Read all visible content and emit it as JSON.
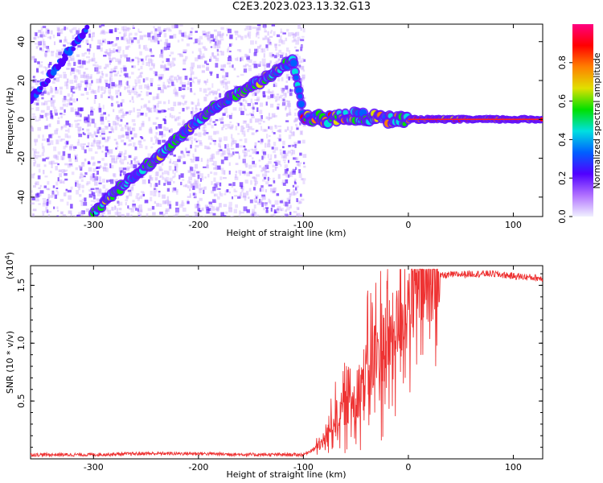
{
  "figure": {
    "title": "C2E3.2023.023.13.32.G13"
  },
  "chart_data": [
    {
      "type": "heatmap",
      "xlabel": "Height of straight line (km)",
      "ylabel": "Frequency (Hz)",
      "xlim": [
        -360,
        128
      ],
      "ylim": [
        -50,
        49
      ],
      "xticks": [
        -300,
        -200,
        -100,
        0,
        100
      ],
      "yticks": [
        -40,
        -20,
        0,
        20,
        40
      ],
      "colorbar": {
        "label": "Normalized spectral amplitude",
        "range": [
          0,
          1
        ],
        "ticks": [
          0.0,
          0.2,
          0.4,
          0.6,
          0.8
        ],
        "colormap": [
          "#f0f0ff",
          "#b070ff",
          "#5000ff",
          "#0060ff",
          "#00e0e0",
          "#00e000",
          "#e0e000",
          "#ff8000",
          "#ff0000",
          "#ff0080"
        ]
      },
      "trace": {
        "x": [
          -310,
          -300,
          -280,
          -260,
          -240,
          -220,
          -200,
          -180,
          -160,
          -140,
          -120,
          -110,
          -100,
          -80,
          -60,
          -40,
          -20,
          -10,
          0,
          20,
          60,
          100,
          128
        ],
        "y": [
          47,
          -48,
          -38,
          -28,
          -20,
          -10,
          0,
          8,
          14,
          20,
          27,
          30,
          2,
          0,
          2,
          1,
          0,
          0,
          0,
          0,
          0,
          0,
          0
        ]
      }
    },
    {
      "type": "line",
      "xlabel": "Height of straight line (km)",
      "ylabel": "SNR (10 * v/v)",
      "multiplier_base": "(x10",
      "multiplier_exp": "4",
      "multiplier_close": ")",
      "xlim": [
        -360,
        128
      ],
      "ylim": [
        0,
        1.67
      ],
      "xticks": [
        -300,
        -200,
        -100,
        0,
        100
      ],
      "yticks": [
        0.5,
        1.0,
        1.5
      ],
      "ytick_labels": [
        "0.5",
        "1.0",
        "1.5"
      ],
      "color": "#ee3333",
      "series": [
        {
          "x": [
            -360,
            -300,
            -250,
            -200,
            -150,
            -100,
            -90,
            -80,
            -70,
            -60,
            -50,
            -40,
            -30,
            -20,
            -10,
            0,
            10,
            20,
            30,
            40,
            60,
            80,
            100,
            128
          ],
          "y": [
            0.03,
            0.03,
            0.04,
            0.04,
            0.03,
            0.03,
            0.08,
            0.15,
            0.35,
            0.45,
            0.55,
            0.75,
            0.9,
            1.0,
            1.15,
            1.3,
            1.45,
            1.53,
            1.58,
            1.59,
            1.6,
            1.6,
            1.58,
            1.56
          ]
        }
      ]
    }
  ]
}
